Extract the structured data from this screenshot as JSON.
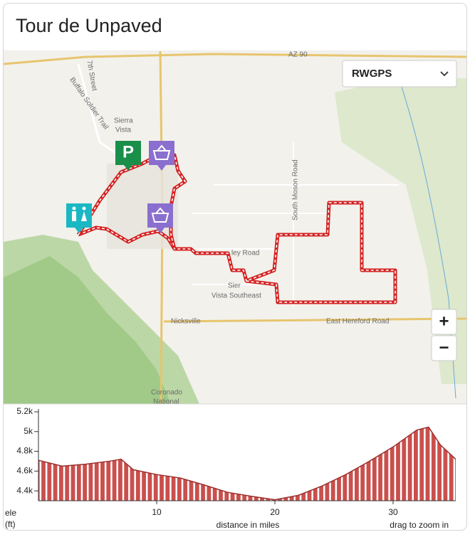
{
  "header": {
    "title": "Tour de Unpaved"
  },
  "map": {
    "provider": "RWGPS",
    "zoom_in": "+",
    "zoom_out": "−",
    "parking": "P",
    "labels": {
      "road_az90": "AZ 90",
      "city_1": "Sierra",
      "city_2": "Vista",
      "south_moson": "South Moson Road",
      "ley_road": "ley Road",
      "southeast_1": "Sier",
      "southeast_2": "Vista Southeast",
      "nicksville": "Nicksville",
      "hereford": "East Hereford Road",
      "coronado_1": "Coronado",
      "coronado_2": "National",
      "seventh": "7th Street",
      "buffalo": "Buffalo Soldier Trail"
    }
  },
  "elevation_chart": {
    "type": "area",
    "color": "#c9504d",
    "x": [
      0,
      2,
      4,
      6,
      7,
      8,
      10,
      12,
      14,
      16,
      18,
      20,
      22,
      24,
      26,
      28,
      30,
      32,
      33,
      34,
      35.3
    ],
    "values": [
      4710,
      4650,
      4670,
      4700,
      4720,
      4615,
      4565,
      4530,
      4460,
      4385,
      4345,
      4310,
      4355,
      4450,
      4565,
      4700,
      4845,
      5015,
      5045,
      4865,
      4720
    ],
    "xlim": [
      0,
      35.3
    ],
    "ylim": [
      4300,
      5200
    ],
    "xticks": [
      10,
      20,
      30
    ],
    "yticks": [
      {
        "value": 4400,
        "label": "4.4k"
      },
      {
        "value": 4600,
        "label": "4.6k"
      },
      {
        "value": 4800,
        "label": "4.8k"
      },
      {
        "value": 5000,
        "label": "5k"
      },
      {
        "value": 5200,
        "label": "5.2k"
      }
    ],
    "y_label_1": "ele",
    "y_label_2": "(ft)",
    "x_label": "distance in miles",
    "hint": "drag to zoom in"
  }
}
